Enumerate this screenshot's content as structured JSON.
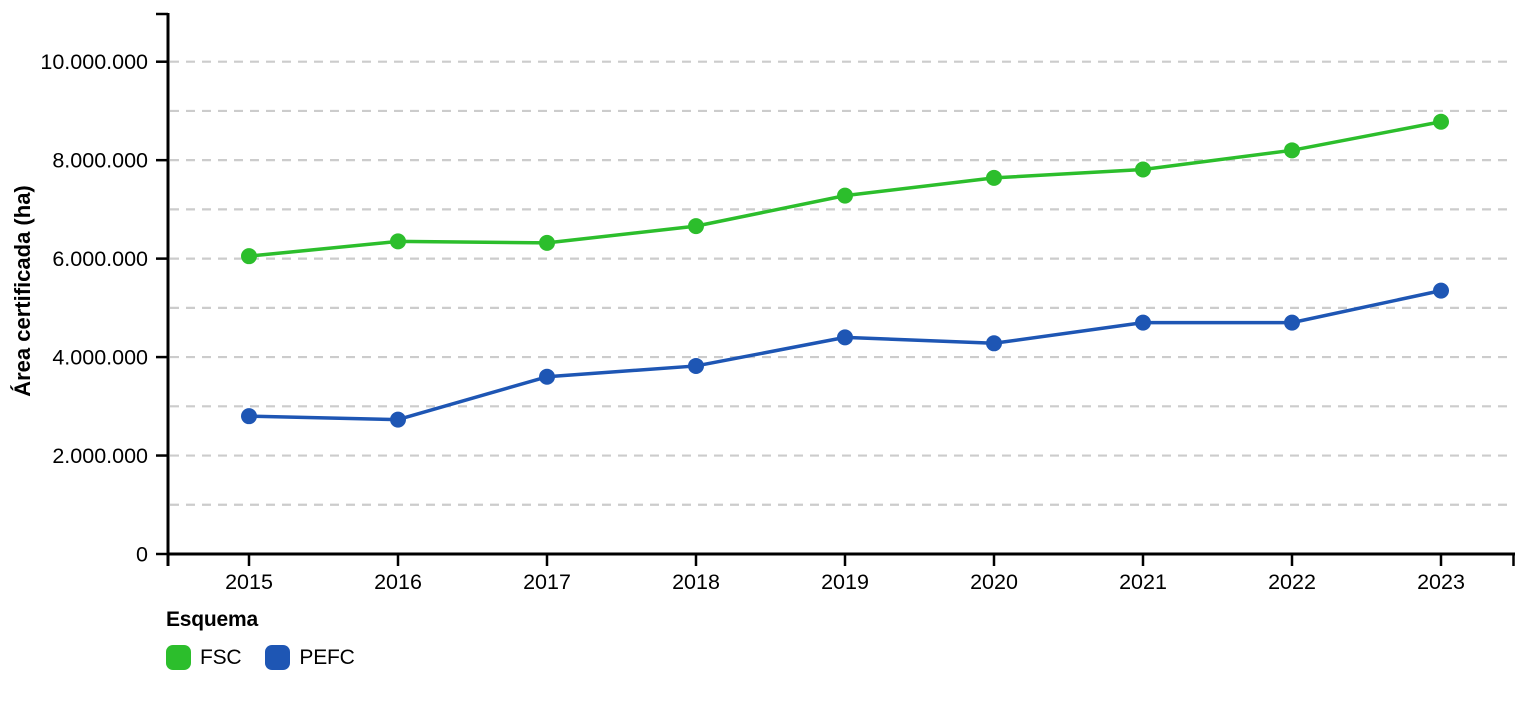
{
  "chart_data": {
    "type": "line",
    "title": "",
    "xlabel": "",
    "ylabel": "Área certificada (ha)",
    "x": [
      "2015",
      "2016",
      "2017",
      "2018",
      "2019",
      "2020",
      "2021",
      "2022",
      "2023"
    ],
    "series": [
      {
        "name": "FSC",
        "color": "#2cbe2c",
        "values": [
          6050000,
          6350000,
          6320000,
          6660000,
          7280000,
          7640000,
          7810000,
          8200000,
          8780000
        ]
      },
      {
        "name": "PEFC",
        "color": "#1e56b4",
        "values": [
          2800000,
          2730000,
          3600000,
          3820000,
          4400000,
          4280000,
          4700000,
          4700000,
          5350000
        ]
      }
    ],
    "ylim": [
      0,
      11000000
    ],
    "yticks": [
      0,
      2000000,
      4000000,
      6000000,
      8000000,
      10000000
    ],
    "ytick_labels": [
      "0",
      "2.000.000",
      "4.000.000",
      "6.000.000",
      "8.000.000",
      "10.000.000"
    ],
    "grid": {
      "horizontal": true,
      "interval": 1000000,
      "style": "dashed",
      "color": "#cccccc"
    },
    "legend_title": "Esquema",
    "legend_position": "bottom-left",
    "axis_color": "#000000",
    "background": "#ffffff"
  }
}
